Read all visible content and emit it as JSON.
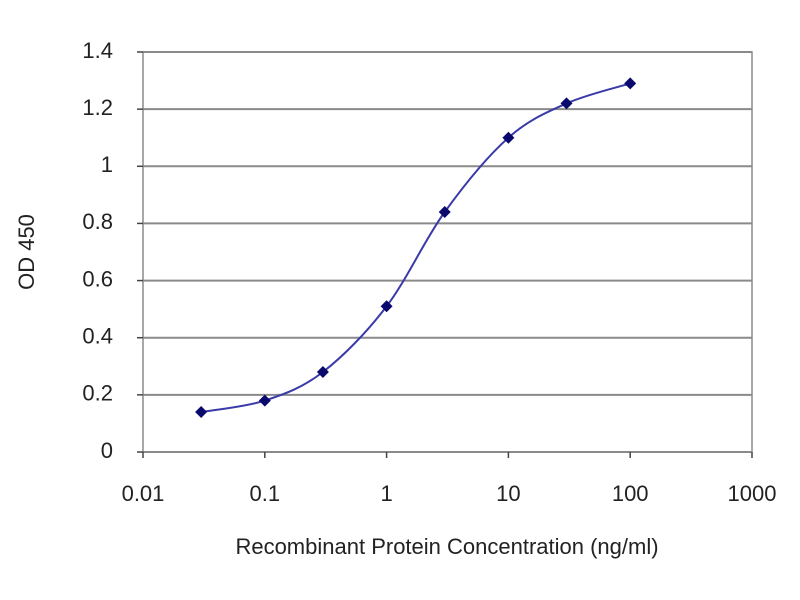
{
  "chart_data": {
    "type": "line",
    "xlabel": "Recombinant Protein Concentration (ng/ml)",
    "ylabel": "OD 450",
    "x": [
      0.03,
      0.1,
      0.3,
      1,
      3,
      10,
      30,
      100
    ],
    "series": [
      {
        "color": "#3a3aa8",
        "marker_color": "#0a0a6e",
        "values": [
          0.14,
          0.18,
          0.28,
          0.51,
          0.84,
          1.1,
          1.22,
          1.29
        ]
      }
    ],
    "xlim": [
      0.01,
      1000
    ],
    "xticks": [
      0.01,
      0.1,
      1,
      10,
      100,
      1000
    ],
    "log_x": true,
    "ylim": [
      0,
      1.4
    ],
    "yticks": [
      0,
      0.2,
      0.4,
      0.6,
      0.8,
      1,
      1.2,
      1.4
    ],
    "grid": true
  }
}
